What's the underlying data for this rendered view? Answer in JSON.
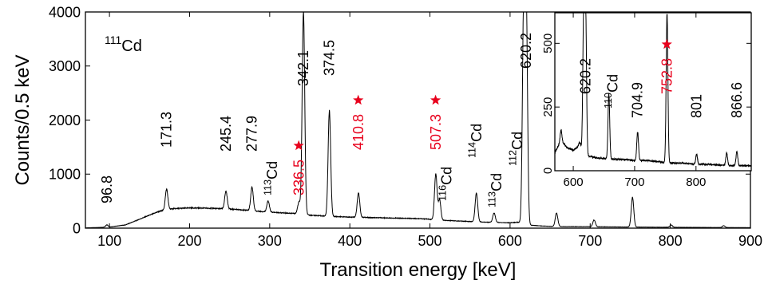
{
  "chart_data": [
    {
      "type": "line",
      "xlabel": "Transition energy [keV]",
      "ylabel": "Counts/0.5 keV",
      "xlim": [
        70,
        900
      ],
      "ylim": [
        0,
        4000
      ],
      "xticks": [
        100,
        200,
        300,
        400,
        500,
        600,
        700,
        800,
        900
      ],
      "yticks": [
        0,
        1000,
        2000,
        3000,
        4000
      ],
      "grid": false,
      "nucleus_label": {
        "mass": "111",
        "symbol": "Cd"
      },
      "background": [
        [
          70,
          5
        ],
        [
          100,
          20
        ],
        [
          120,
          60
        ],
        [
          140,
          180
        ],
        [
          160,
          300
        ],
        [
          170,
          340
        ],
        [
          180,
          360
        ],
        [
          200,
          375
        ],
        [
          220,
          370
        ],
        [
          240,
          360
        ],
        [
          260,
          345
        ],
        [
          280,
          320
        ],
        [
          300,
          295
        ],
        [
          320,
          280
        ],
        [
          335,
          270
        ],
        [
          350,
          240
        ],
        [
          380,
          215
        ],
        [
          400,
          205
        ],
        [
          430,
          195
        ],
        [
          460,
          185
        ],
        [
          490,
          175
        ],
        [
          510,
          150
        ],
        [
          540,
          130
        ],
        [
          570,
          110
        ],
        [
          600,
          100
        ],
        [
          610,
          110
        ],
        [
          620,
          60
        ],
        [
          640,
          40
        ],
        [
          660,
          30
        ],
        [
          700,
          28
        ],
        [
          740,
          22
        ],
        [
          780,
          18
        ],
        [
          820,
          15
        ],
        [
          860,
          12
        ],
        [
          900,
          10
        ]
      ],
      "peaks": [
        {
          "x": 96.8,
          "y": 60
        },
        {
          "x": 171.3,
          "y": 720
        },
        {
          "x": 245.4,
          "y": 680
        },
        {
          "x": 277.9,
          "y": 760
        },
        {
          "x": 298,
          "y": 500
        },
        {
          "x": 336.5,
          "y": 480
        },
        {
          "x": 342.1,
          "y": 4000
        },
        {
          "x": 374.5,
          "y": 2170
        },
        {
          "x": 410.8,
          "y": 650
        },
        {
          "x": 507.3,
          "y": 1000
        },
        {
          "x": 512,
          "y": 520
        },
        {
          "x": 558,
          "y": 650
        },
        {
          "x": 580,
          "y": 280
        },
        {
          "x": 617,
          "y": 4000
        },
        {
          "x": 620.2,
          "y": 4000
        },
        {
          "x": 658,
          "y": 280
        },
        {
          "x": 704.9,
          "y": 150
        },
        {
          "x": 752.8,
          "y": 560
        },
        {
          "x": 801,
          "y": 60
        },
        {
          "x": 866.6,
          "y": 45
        }
      ],
      "annotations": [
        {
          "text": "96.8",
          "x": 96.8,
          "color": "#000000",
          "star": false
        },
        {
          "text": "171.3",
          "x": 171.3,
          "color": "#000000",
          "star": false
        },
        {
          "text": "245.4",
          "x": 245.4,
          "color": "#000000",
          "star": false
        },
        {
          "text": "277.9",
          "x": 277.9,
          "color": "#000000",
          "star": false
        },
        {
          "text": "336.5",
          "x": 336.5,
          "color": "#e8001c",
          "star": true
        },
        {
          "text": "342.1",
          "x": 342.1,
          "color": "#000000",
          "star": false
        },
        {
          "text": "374.5",
          "x": 374.5,
          "color": "#000000",
          "star": false
        },
        {
          "text": "410.8",
          "x": 410.8,
          "color": "#e8001c",
          "star": true
        },
        {
          "text": "507.3",
          "x": 507.3,
          "color": "#e8001c",
          "star": true
        },
        {
          "text": "620.2",
          "x": 620.2,
          "color": "#000000",
          "star": false
        }
      ],
      "cd_labels": [
        {
          "mass": "113",
          "symbol": "Cd",
          "x": 303
        },
        {
          "mass": "116",
          "symbol": "Cd",
          "x": 521
        },
        {
          "mass": "114",
          "symbol": "Cd",
          "x": 558
        },
        {
          "mass": "113",
          "symbol": "Cd",
          "x": 583
        },
        {
          "mass": "112",
          "symbol": "Cd",
          "x": 609
        }
      ]
    },
    {
      "type": "line",
      "xlim": [
        570,
        890
      ],
      "ylim": [
        0,
        620
      ],
      "xticks": [
        600,
        700,
        800
      ],
      "yticks": [
        0,
        250,
        500
      ],
      "grid": false,
      "background": [
        [
          570,
          70
        ],
        [
          580,
          120
        ],
        [
          590,
          90
        ],
        [
          600,
          80
        ],
        [
          610,
          100
        ],
        [
          620,
          60
        ],
        [
          640,
          50
        ],
        [
          660,
          45
        ],
        [
          680,
          45
        ],
        [
          700,
          40
        ],
        [
          720,
          40
        ],
        [
          740,
          35
        ],
        [
          760,
          30
        ],
        [
          780,
          30
        ],
        [
          800,
          25
        ],
        [
          820,
          25
        ],
        [
          840,
          22
        ],
        [
          860,
          20
        ],
        [
          890,
          20
        ]
      ],
      "peaks": [
        {
          "x": 580,
          "y": 160
        },
        {
          "x": 611,
          "y": 110
        },
        {
          "x": 617,
          "y": 620
        },
        {
          "x": 620.2,
          "y": 620
        },
        {
          "x": 658,
          "y": 300
        },
        {
          "x": 704.9,
          "y": 155
        },
        {
          "x": 752.8,
          "y": 620
        },
        {
          "x": 801,
          "y": 65
        },
        {
          "x": 850,
          "y": 70
        },
        {
          "x": 866.6,
          "y": 75
        }
      ],
      "annotations": [
        {
          "text": "620.2",
          "x": 620.2,
          "color": "#000000",
          "star": false
        },
        {
          "text": "704.9",
          "x": 704.9,
          "color": "#000000",
          "star": false
        },
        {
          "text": "752.8",
          "x": 752.8,
          "color": "#e8001c",
          "star": true
        },
        {
          "text": "801",
          "x": 801,
          "color": "#000000",
          "star": false
        },
        {
          "text": "866.6",
          "x": 866.6,
          "color": "#000000",
          "star": false
        }
      ],
      "cd_labels": [
        {
          "mass": "110",
          "symbol": "Cd",
          "x": 664
        }
      ]
    }
  ]
}
